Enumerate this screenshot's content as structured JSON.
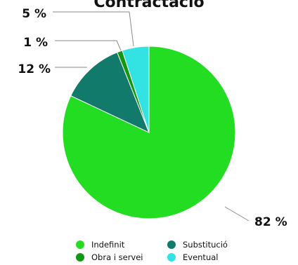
{
  "chart_data": {
    "type": "pie",
    "title": "Contractació",
    "start_angle_deg": 0,
    "direction": "clockwise",
    "slices": [
      {
        "name": "Indefinit",
        "value": 82,
        "label": "82 %",
        "color": "#22dd22"
      },
      {
        "name": "Substitució",
        "value": 12,
        "label": "12 %",
        "color": "#117a6b"
      },
      {
        "name": "Obra i servei",
        "value": 1,
        "label": "1 %",
        "color": "#119911"
      },
      {
        "name": "Eventual",
        "value": 5,
        "label": "5 %",
        "color": "#33e2e2"
      }
    ],
    "legend": {
      "position": "bottom",
      "items": [
        {
          "label": "Indefinit",
          "color": "#22dd22"
        },
        {
          "label": "Substitució",
          "color": "#117a6b"
        },
        {
          "label": "Obra i servei",
          "color": "#119911"
        },
        {
          "label": "Eventual",
          "color": "#33e2e2"
        }
      ]
    }
  }
}
